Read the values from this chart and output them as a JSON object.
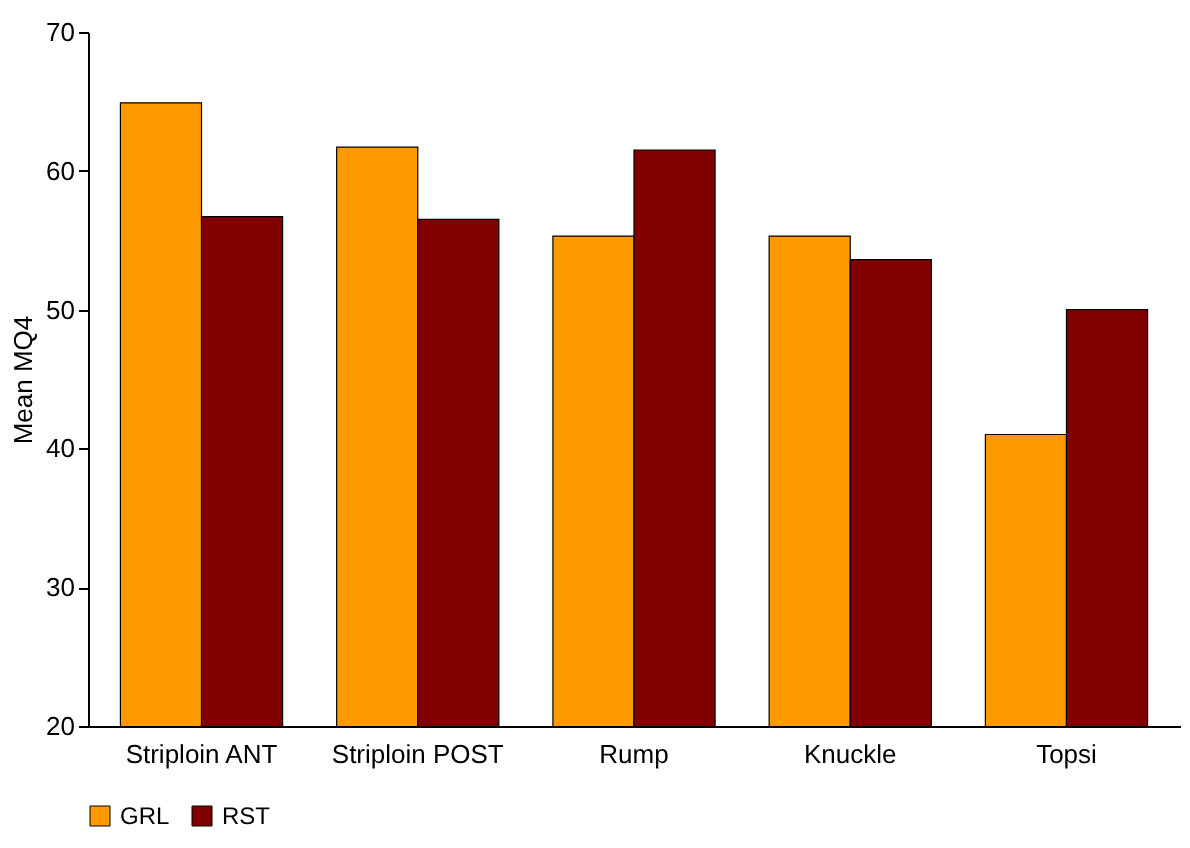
{
  "chart_data": {
    "type": "bar",
    "ylabel": "Mean MQ4",
    "categories": [
      "Striploin ANT",
      "Striploin POST",
      "Rump",
      "Knuckle",
      "Topsi"
    ],
    "series": [
      {
        "name": "GRL",
        "color": "#ff9900",
        "values": [
          64.9,
          61.7,
          55.3,
          55.3,
          41.0
        ]
      },
      {
        "name": "RST",
        "color": "#800000",
        "values": [
          56.7,
          56.5,
          61.5,
          53.6,
          50.0
        ]
      }
    ],
    "ylim": [
      20,
      70
    ],
    "yticks": [
      20,
      30,
      40,
      50,
      60,
      70
    ],
    "grid": false,
    "legend": "bottom"
  }
}
